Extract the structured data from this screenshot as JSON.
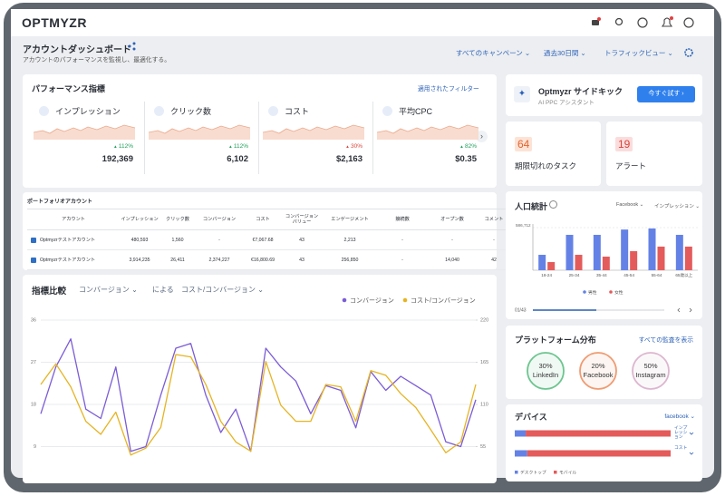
{
  "header": {
    "logo": "OPTMYZR"
  },
  "page": {
    "title": "アカウントダッシュボード",
    "subtitle": "アカウントのパフォーマンスを監視し、最適化する。",
    "filters": [
      "すべてのキャンペーン",
      "過去30日間",
      "トラフィックビュー"
    ]
  },
  "performance": {
    "title": "パフォーマンス指標",
    "filter_link": "適用されたフィルター",
    "metrics": [
      {
        "label": "インプレッション",
        "change": "112%",
        "value": "192,369",
        "color": "#1e9e5a"
      },
      {
        "label": "クリック数",
        "change": "112%",
        "value": "6,102",
        "color": "#1e9e5a"
      },
      {
        "label": "コスト",
        "change": "30%",
        "value": "$2,163",
        "color": "#d9453b"
      },
      {
        "label": "平均CPC",
        "change": "82%",
        "value": "$0.35",
        "color": "#1e9e5a"
      }
    ]
  },
  "portfolio": {
    "title": "ポートフォリオアカウント",
    "columns": [
      "アカウント",
      "インプレッション",
      "クリック数",
      "コンバージョン",
      "コスト",
      "コンバージョンバリュー",
      "エンゲージメント",
      "接続数",
      "オープン数",
      "コメント"
    ],
    "rows": [
      [
        "Optmyzrテストアカウント",
        "480,593",
        "1,560",
        "-",
        "€7,067.68",
        "43",
        "2,213",
        "-",
        "-",
        "-"
      ],
      [
        "Optmyzrテストアカウント",
        "3,914,235",
        "26,411",
        "2,374,227",
        "€16,800.69",
        "43",
        "256,850",
        "-",
        "14,040",
        "42"
      ]
    ]
  },
  "sidekick": {
    "title": "Optmyzr サイドキック",
    "subtitle": "AI PPC アシスタント",
    "button": "今すぐ試す"
  },
  "tasks": {
    "count": "64",
    "label": "期限切れのタスク"
  },
  "alerts": {
    "count": "19",
    "label": "アラート"
  },
  "platform": {
    "title": "プラットフォーム分布",
    "link": "すべての監査を表示",
    "items": [
      {
        "share": "30%",
        "name": "LinkedIn",
        "color": "#6cc58f"
      },
      {
        "share": "20%",
        "name": "Facebook",
        "color": "#ef9b72"
      },
      {
        "share": "50%",
        "name": "Instagram",
        "color": "#dcb6cf"
      }
    ]
  },
  "chart_data": [
    {
      "type": "line",
      "title": "指標比較",
      "selectors": [
        "コンバージョン",
        "による",
        "コスト/コンバージョン"
      ],
      "categories": [
        null,
        null,
        null,
        null,
        null,
        null,
        null,
        null,
        null,
        null,
        null,
        null,
        null,
        null,
        null,
        null,
        null,
        null,
        null,
        null,
        null,
        null,
        null,
        null,
        null,
        null,
        null,
        null,
        null,
        null
      ],
      "series": [
        {
          "name": "コンバージョン",
          "color": "#7b5cd6",
          "values": [
            16,
            26,
            32,
            17,
            15,
            26,
            8,
            9,
            20,
            30,
            31,
            20,
            12,
            17,
            8,
            30,
            26,
            23,
            16,
            22,
            21,
            13,
            25,
            21,
            24,
            22,
            20,
            10,
            9,
            19
          ]
        },
        {
          "name": "コスト/コンバージョン",
          "color": "#e6b422",
          "axis": "y2",
          "values": [
            136,
            163,
            133,
            88,
            71,
            100,
            44,
            53,
            80,
            175,
            172,
            136,
            88,
            61,
            49,
            166,
            109,
            88,
            88,
            136,
            133,
            88,
            154,
            148,
            124,
            106,
            77,
            47,
            61,
            136
          ]
        }
      ],
      "ylim": [
        0,
        36
      ],
      "yticks": [
        9,
        18,
        27,
        36
      ],
      "y2lim": [
        0,
        220
      ],
      "y2ticks": [
        55,
        110,
        165,
        220
      ],
      "grid": true
    },
    {
      "type": "bar",
      "title": "人口統計",
      "filters": [
        "Facebook",
        "インプレッション"
      ],
      "pager": "01/43",
      "categories": [
        "18-24",
        "25-34",
        "35-44",
        "45-54",
        "55-64",
        "65歳以上"
      ],
      "series": [
        {
          "name": "男性",
          "color": "#6482e6",
          "values": [
            212000,
            487000,
            487000,
            560000,
            575000,
            487000
          ]
        },
        {
          "name": "女性",
          "color": "#e45b5b",
          "values": [
            112000,
            212000,
            187000,
            262000,
            325000,
            325000
          ]
        }
      ],
      "ylim": [
        0,
        586712
      ],
      "yticks": [
        {
          "value": 586712,
          "label": "586,712"
        }
      ],
      "grid": true
    },
    {
      "type": "stacked-barh",
      "title": "デバイス",
      "selector": "facebook",
      "categories": [
        "インプレッション",
        "コスト"
      ],
      "series": [
        {
          "name": "デスクトップ",
          "color": "#6482e6",
          "values": [
            7,
            8
          ]
        },
        {
          "name": "モバイル",
          "color": "#e45b5b",
          "values": [
            93,
            92
          ]
        }
      ],
      "xlim": [
        0,
        100
      ]
    }
  ]
}
